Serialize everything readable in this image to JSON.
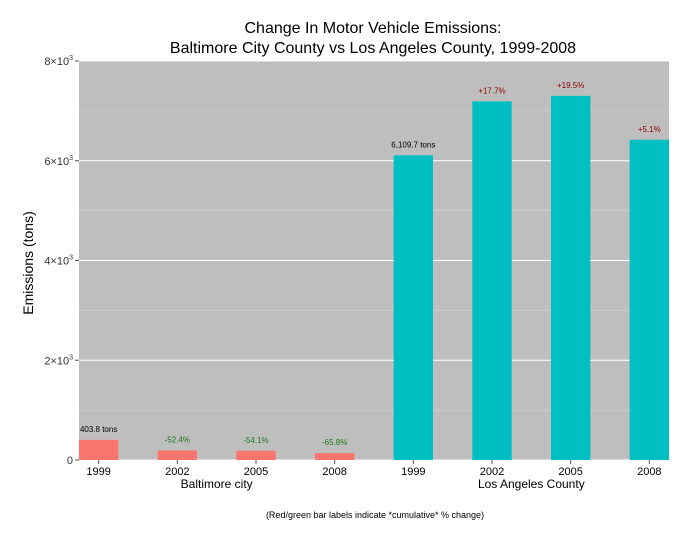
{
  "chart_data": {
    "type": "bar",
    "title_lines": [
      "Change In Motor Vehicle Emissions:",
      "Baltimore City County vs Los Angeles County, 1999-2008"
    ],
    "ylabel": "Emissions (tons)",
    "ylim": [
      0,
      8000
    ],
    "y_ticks": [
      {
        "value": 0,
        "label": "0"
      },
      {
        "value": 2000,
        "base": "2×10",
        "exp": "3"
      },
      {
        "value": 4000,
        "base": "4×10",
        "exp": "3"
      },
      {
        "value": 6000,
        "base": "6×10",
        "exp": "3"
      },
      {
        "value": 8000,
        "base": "8×10",
        "exp": "3"
      }
    ],
    "grid": true,
    "panel_color": "#BEBEBE",
    "groups": [
      {
        "name": "Baltimore city",
        "color": "#F8766D",
        "categories": [
          "1999",
          "2002",
          "2005",
          "2008"
        ],
        "values": [
          403.8,
          192.0,
          185.4,
          138.2
        ],
        "labels": [
          "403.8 tons",
          "-52.4%",
          "-54.1%",
          "-65.8%"
        ],
        "label_colors": [
          "#000000",
          "#1A7A1A",
          "#1A7A1A",
          "#1A7A1A"
        ]
      },
      {
        "name": "Los Angeles County",
        "color": "#00BFC4",
        "categories": [
          "1999",
          "2002",
          "2005",
          "2008"
        ],
        "values": [
          6109.7,
          7190.7,
          7300.9,
          6421.0
        ],
        "labels": [
          "6,109.7 tons",
          "+17.7%",
          "+19.5%",
          "+5.1%"
        ],
        "label_colors": [
          "#000000",
          "#8B0000",
          "#8B0000",
          "#8B0000"
        ]
      }
    ],
    "caption": "(Red/green bar labels indicate *cumulative* % change)"
  }
}
